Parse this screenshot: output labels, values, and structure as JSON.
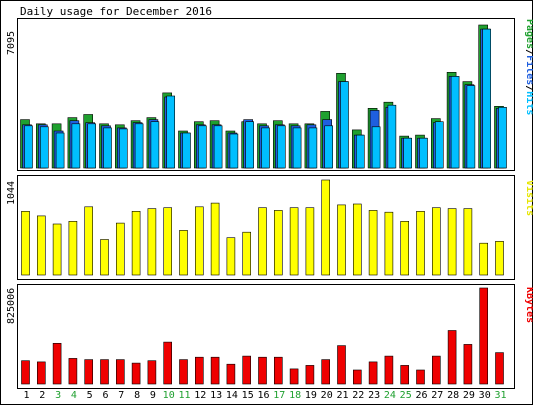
{
  "title": "Daily usage for December 2016",
  "colors": {
    "background": "#ffffff",
    "panel_border": "#000000",
    "pages": "#1fa02f",
    "files": "#1f5fdf",
    "hits": "#00bfff",
    "visits": "#ffff00",
    "kbytes": "#ef0000",
    "weekend_label": "#1fa02f",
    "weekday_label": "#000000"
  },
  "legends": {
    "hits_panel": [
      {
        "text": "Pages",
        "color": "#1fa02f"
      },
      {
        "text": "Files",
        "color": "#1f5fdf"
      },
      {
        "text": "Hits",
        "color": "#00bfff"
      }
    ],
    "visits_panel": "Visits",
    "kbytes_panel": "KBytes"
  },
  "chart_data": [
    {
      "type": "bar",
      "name": "hits_panel",
      "ymax_label": "7095",
      "ylim": [
        0,
        7095
      ],
      "categories": [
        "1",
        "2",
        "3",
        "4",
        "5",
        "6",
        "7",
        "8",
        "9",
        "10",
        "11",
        "12",
        "13",
        "14",
        "15",
        "16",
        "17",
        "18",
        "19",
        "20",
        "21",
        "22",
        "23",
        "24",
        "25",
        "26",
        "27",
        "28",
        "29",
        "30",
        "31"
      ],
      "weekend": [
        false,
        false,
        true,
        true,
        false,
        false,
        false,
        false,
        false,
        true,
        true,
        false,
        false,
        false,
        false,
        false,
        true,
        true,
        false,
        false,
        false,
        false,
        false,
        true,
        true,
        false,
        false,
        false,
        false,
        false,
        true
      ],
      "series": [
        {
          "name": "Pages",
          "values": [
            2350,
            2150,
            2150,
            2450,
            2600,
            2150,
            2100,
            2300,
            2450,
            3650,
            1800,
            2250,
            2300,
            1800,
            2250,
            2150,
            2300,
            2150,
            2150,
            2750,
            4600,
            1850,
            2900,
            3200,
            1550,
            1600,
            2400,
            4650,
            4200,
            6950,
            3000
          ]
        },
        {
          "name": "Files",
          "values": [
            2100,
            2100,
            1800,
            2300,
            2200,
            2050,
            1950,
            2200,
            2350,
            3450,
            1700,
            2100,
            2100,
            1700,
            2350,
            2050,
            2100,
            2050,
            2100,
            2350,
            4200,
            1600,
            2800,
            2950,
            1450,
            1450,
            2200,
            4450,
            4050,
            6750,
            2900
          ]
        },
        {
          "name": "Hits",
          "values": [
            2050,
            2000,
            1700,
            2150,
            2150,
            1950,
            1900,
            2150,
            2250,
            3500,
            1700,
            2050,
            2050,
            1650,
            2250,
            1950,
            2050,
            1950,
            1950,
            2050,
            4200,
            1600,
            2000,
            3050,
            1450,
            1450,
            2250,
            4450,
            4000,
            6750,
            2950
          ]
        }
      ]
    },
    {
      "type": "bar",
      "name": "visits_panel",
      "ymax_label": "1044",
      "ylim": [
        0,
        1044
      ],
      "categories": [
        "1",
        "2",
        "3",
        "4",
        "5",
        "6",
        "7",
        "8",
        "9",
        "10",
        "11",
        "12",
        "13",
        "14",
        "15",
        "16",
        "17",
        "18",
        "19",
        "20",
        "21",
        "22",
        "23",
        "24",
        "25",
        "26",
        "27",
        "28",
        "29",
        "30",
        "31"
      ],
      "series": [
        {
          "name": "Visits",
          "values": [
            700,
            650,
            560,
            590,
            750,
            390,
            570,
            700,
            730,
            740,
            490,
            750,
            790,
            410,
            470,
            740,
            710,
            740,
            740,
            1044,
            770,
            780,
            710,
            690,
            590,
            700,
            740,
            730,
            730,
            350,
            370
          ]
        }
      ]
    },
    {
      "type": "bar",
      "name": "kbytes_panel",
      "ymax_label": "825006",
      "ylim": [
        0,
        825006
      ],
      "categories": [
        "1",
        "2",
        "3",
        "4",
        "5",
        "6",
        "7",
        "8",
        "9",
        "10",
        "11",
        "12",
        "13",
        "14",
        "15",
        "16",
        "17",
        "18",
        "19",
        "20",
        "21",
        "22",
        "23",
        "24",
        "25",
        "26",
        "27",
        "28",
        "29",
        "30",
        "31"
      ],
      "series": [
        {
          "name": "KBytes",
          "values": [
            200000,
            190000,
            350000,
            220000,
            210000,
            210000,
            210000,
            180000,
            200000,
            360000,
            210000,
            230000,
            230000,
            170000,
            240000,
            230000,
            230000,
            130000,
            160000,
            210000,
            330000,
            120000,
            190000,
            240000,
            160000,
            120000,
            240000,
            460000,
            340000,
            825006,
            270000
          ]
        }
      ]
    }
  ]
}
